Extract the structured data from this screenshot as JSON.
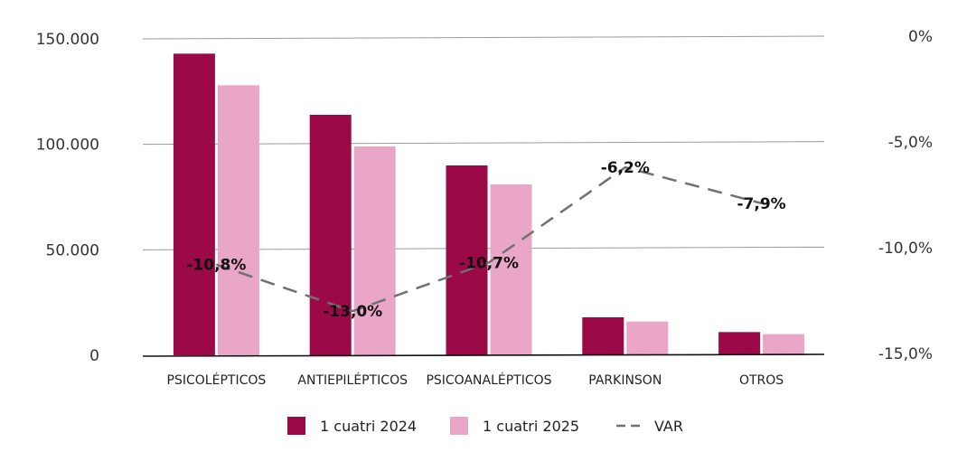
{
  "chart_data": {
    "type": "bar",
    "categories": [
      "PSICOLÉPTICOS",
      "ANTIEPILÉPTICOS",
      "PSICOANALÉPTICOS",
      "PARKINSON",
      "OTROS"
    ],
    "series": [
      {
        "name": "1 cuatri 2024",
        "type": "bar",
        "color": "#9b0a47",
        "values": [
          143000,
          114000,
          90000,
          18000,
          11000
        ]
      },
      {
        "name": "1 cuatri 2025",
        "type": "bar",
        "color": "#eaa6c6",
        "values": [
          128000,
          99000,
          81000,
          16000,
          10000
        ]
      },
      {
        "name": "VAR",
        "type": "line",
        "axis": "right",
        "style": "dashed",
        "color": "#707070",
        "values": [
          -10.8,
          -13.0,
          -10.7,
          -6.2,
          -7.9
        ],
        "labels": [
          "-10,8%",
          "-13,0%",
          "-10,7%",
          "-6,2%",
          "-7,9%"
        ]
      }
    ],
    "y_left": {
      "min": 0,
      "max": 150000,
      "ticks": [
        0,
        50000,
        100000,
        150000
      ],
      "tick_labels": [
        "0",
        "50.000",
        "100.000",
        "150.000"
      ]
    },
    "y_right": {
      "min": -15,
      "max": 0,
      "ticks": [
        0,
        -5,
        -10,
        -15
      ],
      "tick_labels": [
        "0%",
        "-5,0%",
        "-10,0%",
        "-15,0%"
      ]
    },
    "grid": true,
    "legend": {
      "position": "bottom",
      "items": [
        "1 cuatri 2024",
        "1 cuatri 2025",
        "VAR"
      ]
    }
  }
}
